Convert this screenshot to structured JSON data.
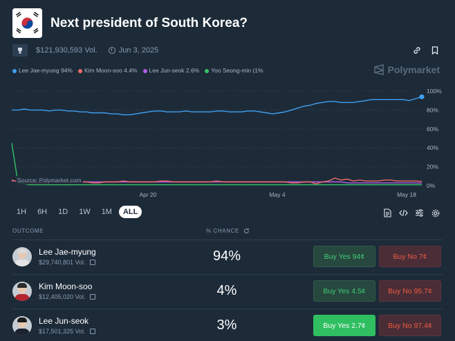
{
  "header": {
    "title": "Next president of South Korea?",
    "volume": "$121,930,593 Vol.",
    "date": "Jun 3, 2025"
  },
  "brand": "Polymarket",
  "legend": [
    {
      "label": "Lee Jae-myung 94%",
      "color": "#3fa0f0"
    },
    {
      "label": "Kim Moon-soo 4.4%",
      "color": "#f06a6a"
    },
    {
      "label": "Lee Jun-seok 2.6%",
      "color": "#b45ee8"
    },
    {
      "label": "Yoo Seong-min (1%",
      "color": "#34c46a"
    }
  ],
  "chart_source": "Source: Polymarket.com",
  "chart_data": {
    "type": "line",
    "x_ticks": [
      "Apr 20",
      "May 4",
      "May 18"
    ],
    "y_ticks": [
      "100%",
      "80%",
      "60%",
      "40%",
      "20%",
      "0%"
    ],
    "ylim": [
      0,
      100
    ],
    "series": [
      {
        "name": "Lee Jae-myung",
        "color": "#3fa0f0",
        "values": [
          80,
          80,
          81,
          80,
          80,
          80,
          79,
          80,
          80,
          79,
          79,
          78,
          78,
          77,
          77,
          77,
          76,
          76,
          75,
          75,
          76,
          77,
          78,
          79,
          79,
          78,
          78,
          78,
          79,
          78,
          78,
          78,
          78,
          79,
          79,
          78,
          78,
          78,
          79,
          79,
          78,
          77,
          76,
          77,
          78,
          80,
          82,
          84,
          85,
          87,
          88,
          89,
          89,
          88,
          88,
          88,
          89,
          90,
          91,
          91,
          91,
          91,
          91,
          91,
          90,
          92,
          94
        ]
      },
      {
        "name": "Kim Moon-soo",
        "color": "#f06a6a",
        "values": [
          6,
          4,
          4,
          3,
          3,
          3,
          4,
          4,
          4,
          4,
          4,
          4,
          4,
          3,
          3,
          4,
          4,
          4,
          5,
          4,
          4,
          4,
          4,
          4,
          5,
          5,
          4,
          4,
          4,
          4,
          4,
          4,
          4,
          5,
          4,
          4,
          4,
          4,
          4,
          4,
          4,
          4,
          4,
          4,
          4,
          3,
          3,
          4,
          4,
          2,
          4,
          5,
          8,
          6,
          7,
          5,
          6,
          5,
          5,
          5,
          6,
          6,
          5,
          5,
          5,
          5,
          4.4
        ]
      },
      {
        "name": "Lee Jun-seok",
        "color": "#b45ee8",
        "values": [
          5,
          5,
          4,
          4,
          4,
          4,
          4,
          4,
          4,
          4,
          4,
          4,
          4,
          4,
          4,
          4,
          4,
          4,
          4,
          4,
          4,
          4,
          4,
          4,
          4,
          4,
          4,
          4,
          4,
          4,
          4,
          4,
          4,
          4,
          4,
          4,
          4,
          4,
          4,
          4,
          4,
          4,
          4,
          4,
          4,
          4,
          4,
          4,
          4,
          4,
          4,
          4,
          4,
          4,
          3,
          3,
          3,
          3,
          3,
          3,
          3,
          3,
          3,
          3,
          3,
          3,
          2.6
        ]
      },
      {
        "name": "Yoo Seong-min",
        "color": "#34c46a",
        "values": [
          45,
          3,
          2,
          1,
          1,
          1,
          1,
          1,
          1,
          1,
          1,
          1,
          1,
          1,
          1,
          1,
          1,
          1,
          1,
          1,
          1,
          1,
          1,
          1,
          1,
          1,
          1,
          1,
          1,
          1,
          1,
          1,
          1,
          1,
          1,
          1,
          1,
          1,
          1,
          1,
          1,
          1,
          1,
          1,
          1,
          1,
          1,
          1,
          1,
          1,
          1,
          1,
          1,
          1,
          1,
          1,
          1,
          1,
          1,
          1,
          1,
          1,
          1,
          1,
          1,
          1,
          1
        ]
      }
    ]
  },
  "ranges": [
    "1H",
    "6H",
    "1D",
    "1W",
    "1M",
    "ALL"
  ],
  "active_range": "ALL",
  "table": {
    "outcome_header": "OUTCOME",
    "chance_header": "% CHANCE",
    "rows": [
      {
        "name": "Lee Jae-myung",
        "volume": "$29,740,801 Vol.",
        "chance": "94%",
        "yes": "Buy Yes 94¢",
        "no": "Buy No 7¢",
        "hair": "#d8d8d8",
        "suit": "#e4e4e4"
      },
      {
        "name": "Kim Moon-soo",
        "volume": "$12,405,020 Vol.",
        "chance": "4%",
        "yes": "Buy Yes 4.5¢",
        "no": "Buy No 95.7¢",
        "hair": "#2b2b2b",
        "suit": "#b3262f"
      },
      {
        "name": "Lee Jun-seok",
        "volume": "$17,501,325 Vol.",
        "chance": "3%",
        "yes": "Buy Yes 2.7¢",
        "no": "Buy No 97.4¢",
        "hair": "#1c1c1c",
        "suit": "#1c2330"
      }
    ]
  }
}
